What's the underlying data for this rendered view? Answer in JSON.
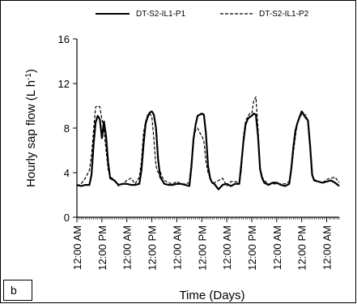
{
  "chart_data": {
    "type": "line",
    "xlabel": "Time (Days)",
    "ylabel": "Hourly sap flow (L h",
    "ylabel_superscript": "-1",
    "ylabel_close": ")",
    "ylim": [
      0,
      16
    ],
    "yticks": [
      0,
      4,
      8,
      12,
      16
    ],
    "xlim": [
      0,
      126
    ],
    "xticks": [
      0,
      12,
      24,
      36,
      48,
      60,
      72,
      84,
      96,
      108,
      120
    ],
    "xtick_labels": [
      "12:00 AM",
      "12:00 PM",
      "12:00 AM",
      "12:00 PM",
      "12:00 AM",
      "12:00 PM",
      "12:00 AM",
      "12:00 PM",
      "12:00 AM",
      "12:00 PM",
      "12:00 AM"
    ],
    "x_unit": "hours",
    "grid": false,
    "legend_position": "top",
    "series": [
      {
        "name": "DT-S2-IL1-P1",
        "style": "solid",
        "color": "#000000",
        "x": [
          0,
          2,
          4,
          6,
          7,
          8,
          9,
          10,
          11,
          12,
          13,
          14,
          15,
          16,
          17,
          18,
          20,
          22,
          24,
          26,
          28,
          30,
          31,
          32,
          33,
          34,
          35,
          36,
          37,
          38,
          39,
          40,
          41,
          42,
          44,
          46,
          48,
          50,
          52,
          54,
          55,
          56,
          57,
          58,
          59,
          60,
          61,
          62,
          63,
          64,
          65,
          66,
          68,
          70,
          72,
          74,
          76,
          78,
          79,
          80,
          81,
          82,
          83,
          84,
          85,
          86,
          87,
          88,
          89,
          90,
          92,
          94,
          96,
          98,
          100,
          102,
          103,
          104,
          105,
          106,
          107,
          108,
          109,
          110,
          111,
          112,
          113,
          114,
          116,
          118,
          120,
          122,
          124,
          126
        ],
        "y": [
          2.9,
          2.8,
          2.9,
          2.9,
          3.8,
          6.5,
          8.5,
          9.1,
          8.8,
          7.1,
          8.6,
          7.3,
          4.9,
          3.5,
          3.4,
          3.3,
          2.9,
          3.0,
          3.0,
          2.9,
          2.9,
          3.0,
          4.2,
          6.5,
          8.4,
          9.0,
          9.4,
          9.5,
          9.2,
          8.0,
          5.2,
          3.6,
          3.3,
          3.0,
          2.9,
          2.9,
          3.0,
          3.0,
          2.9,
          2.8,
          4.5,
          7.0,
          8.3,
          9.1,
          9.2,
          9.3,
          9.2,
          7.5,
          4.6,
          3.5,
          3.1,
          3.0,
          2.5,
          2.9,
          3.0,
          2.8,
          3.0,
          3.0,
          4.8,
          6.8,
          8.3,
          8.8,
          9.0,
          9.1,
          9.3,
          9.2,
          7.3,
          4.3,
          3.5,
          3.1,
          2.9,
          3.1,
          3.1,
          2.9,
          2.8,
          3.0,
          4.4,
          6.3,
          7.8,
          8.5,
          9.0,
          9.5,
          9.2,
          8.9,
          8.7,
          6.5,
          3.8,
          3.3,
          3.2,
          3.1,
          3.2,
          3.3,
          3.1,
          2.8
        ]
      },
      {
        "name": "DT-S2-IL1-P2",
        "style": "dashed",
        "color": "#000000",
        "x": [
          0,
          2,
          4,
          6,
          7,
          8,
          9,
          10,
          11,
          12,
          13,
          14,
          15,
          16,
          17,
          18,
          20,
          22,
          24,
          26,
          28,
          30,
          31,
          32,
          33,
          34,
          35,
          36,
          37,
          38,
          39,
          40,
          41,
          42,
          44,
          46,
          48,
          50,
          52,
          54,
          55,
          56,
          57,
          58,
          59,
          60,
          61,
          62,
          63,
          64,
          65,
          66,
          68,
          70,
          72,
          74,
          76,
          78,
          79,
          80,
          81,
          82,
          83,
          84,
          85,
          86,
          87,
          88,
          89,
          90,
          92,
          94,
          96,
          98,
          100,
          102,
          103,
          104,
          105,
          106,
          107,
          108,
          109,
          110,
          111,
          112,
          113,
          114,
          116,
          118,
          120,
          122,
          124,
          126
        ],
        "y": [
          2.8,
          3.0,
          3.5,
          4.2,
          5.5,
          7.8,
          9.9,
          10.0,
          9.9,
          8.8,
          7.8,
          6.0,
          4.3,
          3.6,
          3.5,
          3.4,
          2.8,
          3.0,
          3.3,
          3.5,
          3.0,
          3.6,
          5.0,
          7.6,
          8.6,
          9.2,
          9.3,
          9.0,
          7.0,
          4.6,
          4.0,
          4.1,
          3.6,
          3.3,
          3.1,
          3.0,
          3.2,
          3.0,
          3.0,
          3.1,
          5.0,
          7.2,
          7.8,
          8.0,
          7.6,
          7.3,
          6.8,
          5.0,
          4.0,
          3.5,
          3.1,
          3.1,
          3.3,
          3.5,
          2.8,
          3.2,
          3.2,
          3.1,
          4.2,
          7.2,
          8.6,
          9.0,
          9.3,
          9.3,
          10.5,
          10.8,
          8.0,
          4.5,
          3.6,
          3.3,
          3.0,
          3.0,
          3.0,
          3.0,
          3.0,
          3.2,
          4.2,
          5.8,
          7.3,
          8.6,
          9.0,
          9.2,
          9.1,
          9.2,
          8.5,
          6.0,
          3.7,
          3.4,
          3.2,
          3.1,
          3.4,
          3.5,
          3.6,
          3.1
        ]
      }
    ]
  },
  "panel_label": "b"
}
